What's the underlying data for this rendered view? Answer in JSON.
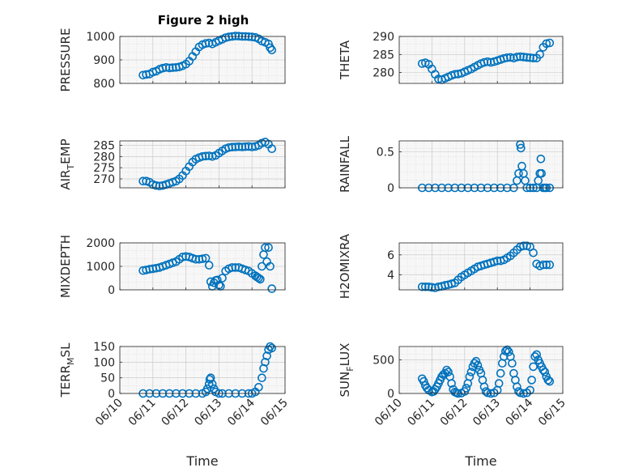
{
  "title": "Figure 2 high",
  "x_axis": {
    "label": "Time",
    "tick_labels": [
      "06/10",
      "06/11",
      "06/12",
      "06/13",
      "06/14",
      "06/15"
    ]
  },
  "colors": {
    "marker": "#0072BD",
    "axis": "#262626",
    "grid": "#d4d4d4",
    "box": "#f7f7f7"
  },
  "chart_data": [
    {
      "type": "scatter",
      "ylabel": "PRESSURE",
      "ylim": [
        800,
        1000
      ],
      "yticks": [
        800,
        900,
        1000
      ],
      "x": [
        0.7,
        0.8,
        0.9,
        1.0,
        1.1,
        1.2,
        1.3,
        1.4,
        1.5,
        1.6,
        1.7,
        1.8,
        1.9,
        2.0,
        2.1,
        2.2,
        2.3,
        2.4,
        2.5,
        2.6,
        2.7,
        2.8,
        2.9,
        3.0,
        3.1,
        3.2,
        3.3,
        3.4,
        3.5,
        3.6,
        3.7,
        3.8,
        3.9,
        4.0,
        4.1,
        4.2,
        4.3,
        4.4,
        4.5,
        4.55,
        4.6
      ],
      "y": [
        835,
        838,
        840,
        848,
        852,
        860,
        865,
        868,
        866,
        867,
        868,
        870,
        875,
        882,
        895,
        915,
        935,
        955,
        965,
        970,
        972,
        968,
        975,
        982,
        988,
        995,
        998,
        1000,
        1002,
        1001,
        1000,
        1000,
        999,
        998,
        996,
        990,
        980,
        975,
        968,
        952,
        942
      ]
    },
    {
      "type": "scatter",
      "ylabel": "THETA",
      "ylim": [
        277,
        290
      ],
      "yticks": [
        280,
        285,
        290
      ],
      "x": [
        0.7,
        0.8,
        0.9,
        1.0,
        1.1,
        1.2,
        1.3,
        1.4,
        1.5,
        1.6,
        1.7,
        1.8,
        1.9,
        2.0,
        2.1,
        2.2,
        2.3,
        2.4,
        2.5,
        2.6,
        2.7,
        2.8,
        2.9,
        3.0,
        3.1,
        3.2,
        3.3,
        3.4,
        3.5,
        3.6,
        3.7,
        3.8,
        3.9,
        4.0,
        4.1,
        4.2,
        4.3,
        4.4,
        4.5,
        4.6
      ],
      "y": [
        282.5,
        282.7,
        282.3,
        281.0,
        279.5,
        278.2,
        278.0,
        278.4,
        278.8,
        279.2,
        279.5,
        279.6,
        279.8,
        280.2,
        280.6,
        281.0,
        281.5,
        282.0,
        282.5,
        282.8,
        283.0,
        282.8,
        283.0,
        283.3,
        283.6,
        283.9,
        284.1,
        284.2,
        284.0,
        284.3,
        284.4,
        284.3,
        284.2,
        284.1,
        284.0,
        284.0,
        285.0,
        287.0,
        288.0,
        288.2
      ]
    },
    {
      "type": "scatter",
      "ylabel": "AIR_TEMP",
      "ylim": [
        266,
        287
      ],
      "yticks": [
        270,
        275,
        280,
        285
      ],
      "x": [
        0.7,
        0.8,
        0.9,
        1.0,
        1.1,
        1.2,
        1.3,
        1.4,
        1.5,
        1.6,
        1.7,
        1.8,
        1.9,
        2.0,
        2.1,
        2.2,
        2.3,
        2.4,
        2.5,
        2.6,
        2.7,
        2.8,
        2.9,
        3.0,
        3.1,
        3.2,
        3.3,
        3.4,
        3.5,
        3.6,
        3.7,
        3.8,
        3.9,
        4.0,
        4.1,
        4.2,
        4.3,
        4.4,
        4.5,
        4.6
      ],
      "y": [
        269.0,
        269.0,
        268.5,
        267.5,
        267.0,
        266.8,
        267.0,
        267.5,
        268.0,
        268.5,
        269.0,
        270.0,
        271.5,
        273.5,
        275.5,
        277.5,
        278.8,
        279.5,
        280.0,
        280.2,
        280.3,
        280.0,
        280.5,
        281.5,
        282.5,
        283.5,
        284.0,
        284.2,
        284.3,
        284.4,
        284.3,
        284.4,
        284.5,
        284.3,
        284.5,
        285.0,
        286.0,
        286.5,
        285.5,
        283.5
      ]
    },
    {
      "type": "scatter",
      "ylabel": "RAINFALL",
      "ylim": [
        0,
        0.65
      ],
      "yticks": [
        0,
        0.5
      ],
      "x": [
        0.7,
        0.9,
        1.1,
        1.3,
        1.5,
        1.7,
        1.9,
        2.1,
        2.3,
        2.5,
        2.7,
        2.9,
        3.1,
        3.3,
        3.5,
        3.6,
        3.65,
        3.7,
        3.72,
        3.75,
        3.8,
        3.85,
        3.9,
        4.0,
        4.1,
        4.2,
        4.25,
        4.3,
        4.33,
        4.35,
        4.4,
        4.45,
        4.5,
        4.6
      ],
      "y": [
        0,
        0,
        0,
        0,
        0,
        0,
        0,
        0,
        0,
        0,
        0,
        0,
        0,
        0,
        0,
        0.1,
        0.2,
        0.6,
        0.55,
        0.3,
        0.2,
        0.1,
        0,
        0,
        0,
        0,
        0.1,
        0.2,
        0.4,
        0.2,
        0,
        0,
        0,
        0
      ]
    },
    {
      "type": "scatter",
      "ylabel": "MIXDEPTH",
      "ylim": [
        0,
        2000
      ],
      "yticks": [
        0,
        1000,
        2000
      ],
      "x": [
        0.7,
        0.8,
        0.9,
        1.0,
        1.1,
        1.2,
        1.3,
        1.4,
        1.5,
        1.6,
        1.7,
        1.8,
        1.9,
        2.0,
        2.1,
        2.2,
        2.3,
        2.4,
        2.5,
        2.6,
        2.7,
        2.75,
        2.8,
        2.85,
        2.9,
        2.95,
        3.0,
        3.05,
        3.1,
        3.2,
        3.3,
        3.4,
        3.5,
        3.6,
        3.7,
        3.8,
        3.9,
        4.0,
        4.1,
        4.15,
        4.2,
        4.25,
        4.3,
        4.35,
        4.4,
        4.45,
        4.5,
        4.55,
        4.6
      ],
      "y": [
        820,
        850,
        880,
        900,
        920,
        950,
        1000,
        1050,
        1100,
        1150,
        1200,
        1300,
        1400,
        1420,
        1400,
        1350,
        1300,
        1300,
        1320,
        1350,
        1050,
        350,
        150,
        300,
        400,
        420,
        200,
        150,
        500,
        800,
        900,
        950,
        950,
        950,
        900,
        850,
        800,
        700,
        600,
        550,
        500,
        450,
        1000,
        1500,
        1800,
        1200,
        1800,
        1000,
        50
      ]
    },
    {
      "type": "scatter",
      "ylabel": "H2OMIXRA",
      "ylim": [
        2.5,
        7.2
      ],
      "yticks": [
        4,
        6
      ],
      "x": [
        0.7,
        0.8,
        0.9,
        1.0,
        1.1,
        1.2,
        1.3,
        1.4,
        1.5,
        1.6,
        1.7,
        1.8,
        1.9,
        2.0,
        2.1,
        2.2,
        2.3,
        2.4,
        2.5,
        2.6,
        2.7,
        2.8,
        2.9,
        3.0,
        3.1,
        3.2,
        3.3,
        3.4,
        3.5,
        3.6,
        3.7,
        3.8,
        3.9,
        4.0,
        4.1,
        4.2,
        4.3,
        4.4,
        4.5,
        4.6
      ],
      "y": [
        2.8,
        2.8,
        2.8,
        2.75,
        2.7,
        2.8,
        2.85,
        2.95,
        3.0,
        3.1,
        3.2,
        3.5,
        3.8,
        4.0,
        4.2,
        4.4,
        4.6,
        4.8,
        4.9,
        5.0,
        5.1,
        5.2,
        5.3,
        5.4,
        5.4,
        5.5,
        5.7,
        5.9,
        6.2,
        6.5,
        6.8,
        6.9,
        6.9,
        6.8,
        6.2,
        5.1,
        4.9,
        5.0,
        5.0,
        5.0
      ]
    },
    {
      "type": "scatter",
      "ylabel": "TERR_MSL",
      "ylim": [
        0,
        150
      ],
      "yticks": [
        0,
        50,
        100,
        150
      ],
      "x": [
        0.7,
        0.9,
        1.1,
        1.3,
        1.5,
        1.7,
        1.9,
        2.1,
        2.3,
        2.5,
        2.6,
        2.65,
        2.7,
        2.72,
        2.75,
        2.8,
        2.85,
        2.9,
        3.0,
        3.1,
        3.3,
        3.5,
        3.7,
        3.9,
        4.0,
        4.1,
        4.2,
        4.3,
        4.35,
        4.4,
        4.45,
        4.5,
        4.55,
        4.6
      ],
      "y": [
        0,
        0,
        0,
        0,
        0,
        0,
        0,
        0,
        0,
        0,
        5,
        15,
        30,
        45,
        50,
        30,
        15,
        5,
        0,
        0,
        0,
        0,
        0,
        0,
        0,
        5,
        20,
        50,
        80,
        100,
        120,
        140,
        150,
        145
      ]
    },
    {
      "type": "scatter",
      "ylabel": "SUN_FLUX",
      "ylim": [
        0,
        700
      ],
      "yticks": [
        0,
        500
      ],
      "x": [
        0.7,
        0.75,
        0.8,
        0.85,
        0.9,
        1.0,
        1.05,
        1.1,
        1.15,
        1.2,
        1.25,
        1.3,
        1.35,
        1.4,
        1.45,
        1.5,
        1.55,
        1.6,
        1.65,
        1.7,
        1.75,
        1.8,
        1.9,
        2.0,
        2.05,
        2.1,
        2.15,
        2.2,
        2.25,
        2.3,
        2.35,
        2.4,
        2.45,
        2.5,
        2.55,
        2.6,
        2.65,
        2.7,
        2.8,
        2.9,
        3.0,
        3.05,
        3.1,
        3.15,
        3.2,
        3.25,
        3.3,
        3.35,
        3.4,
        3.45,
        3.5,
        3.55,
        3.6,
        3.65,
        3.7,
        3.8,
        3.9,
        4.0,
        4.05,
        4.1,
        4.15,
        4.2,
        4.25,
        4.3,
        4.35,
        4.4,
        4.45,
        4.5,
        4.55,
        4.6
      ],
      "y": [
        220,
        180,
        120,
        80,
        50,
        20,
        30,
        60,
        100,
        150,
        200,
        250,
        280,
        300,
        350,
        320,
        250,
        150,
        60,
        20,
        10,
        0,
        5,
        30,
        80,
        150,
        250,
        320,
        400,
        450,
        480,
        420,
        350,
        300,
        200,
        100,
        30,
        10,
        0,
        10,
        50,
        150,
        300,
        450,
        550,
        630,
        650,
        620,
        550,
        450,
        300,
        200,
        100,
        30,
        10,
        0,
        10,
        50,
        200,
        400,
        550,
        580,
        500,
        450,
        400,
        350,
        320,
        250,
        200,
        180
      ]
    }
  ]
}
